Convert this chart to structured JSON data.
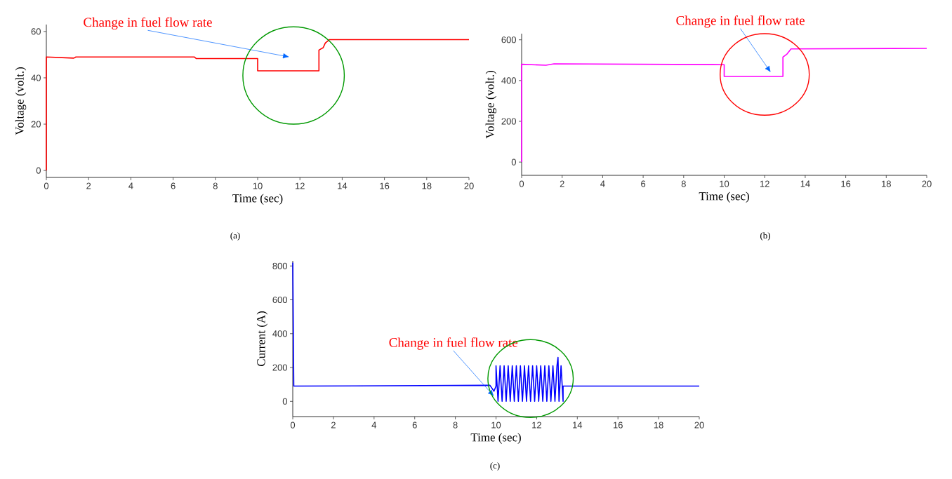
{
  "chart_data": [
    {
      "type": "line",
      "xlabel": "Time (sec)",
      "ylabel": "Voltage (volt.)",
      "xlim": [
        0,
        20
      ],
      "ylim": [
        -3,
        63
      ],
      "xticks": [
        0,
        2,
        4,
        6,
        8,
        10,
        12,
        14,
        16,
        18,
        20
      ],
      "yticks": [
        0,
        20,
        40,
        60
      ],
      "x": [
        0,
        0,
        1.3,
        1.4,
        7,
        7.1,
        10,
        10,
        12.9,
        12.9,
        13.1,
        13.2,
        13.4,
        20
      ],
      "series": [
        {
          "color": "#ff0000",
          "values": [
            0,
            49,
            48.5,
            49,
            49,
            48.3,
            48.3,
            43,
            43,
            52,
            53,
            55,
            56.5,
            56.5
          ]
        }
      ],
      "annotations": [
        "Change in fuel flow rate",
        "(a)"
      ]
    },
    {
      "type": "line",
      "xlabel": "Time (sec)",
      "ylabel": "Voltage (volt.)",
      "xlim": [
        0,
        20
      ],
      "ylim": [
        -65,
        630
      ],
      "xticks": [
        0,
        2,
        4,
        6,
        8,
        10,
        12,
        14,
        16,
        18,
        20
      ],
      "yticks": [
        0,
        200,
        400,
        600
      ],
      "x": [
        0,
        0,
        1.2,
        1.6,
        10,
        10,
        12.9,
        12.9,
        13.1,
        13.3,
        20
      ],
      "series": [
        {
          "color": "#ff00ff",
          "values": [
            0,
            480,
            475,
            482,
            478,
            420,
            420,
            515,
            530,
            555,
            558
          ]
        }
      ],
      "annotations": [
        "Change in fuel flow rate",
        "(b)"
      ]
    },
    {
      "type": "line",
      "xlabel": "Time (sec)",
      "ylabel": "Current (A)",
      "xlim": [
        0,
        20
      ],
      "ylim": [
        -90,
        830
      ],
      "xticks": [
        0,
        2,
        4,
        6,
        8,
        10,
        12,
        14,
        16,
        18,
        20
      ],
      "yticks": [
        0,
        200,
        400,
        600,
        800
      ],
      "x": [
        0,
        0.05,
        9.7,
        9.9,
        10,
        10,
        10.1,
        10.2,
        10.3,
        10.4,
        10.5,
        10.6,
        10.7,
        10.8,
        10.9,
        11,
        11.1,
        11.2,
        11.3,
        11.4,
        11.5,
        11.6,
        11.7,
        11.8,
        11.9,
        12,
        12.1,
        12.2,
        12.3,
        12.4,
        12.5,
        12.6,
        12.7,
        12.8,
        12.9,
        13,
        13.05,
        13.1,
        13.2,
        13.3,
        13.3,
        20
      ],
      "series": [
        {
          "color": "#0000ff",
          "values": [
            820,
            90,
            95,
            60,
            90,
            210,
            0,
            210,
            0,
            210,
            0,
            210,
            0,
            210,
            0,
            210,
            0,
            210,
            0,
            210,
            0,
            210,
            0,
            210,
            0,
            210,
            0,
            210,
            0,
            210,
            0,
            210,
            0,
            210,
            0,
            210,
            260,
            0,
            210,
            0,
            90,
            90
          ]
        }
      ],
      "annotations": [
        "Change in fuel flow rate",
        "(c)"
      ]
    }
  ]
}
